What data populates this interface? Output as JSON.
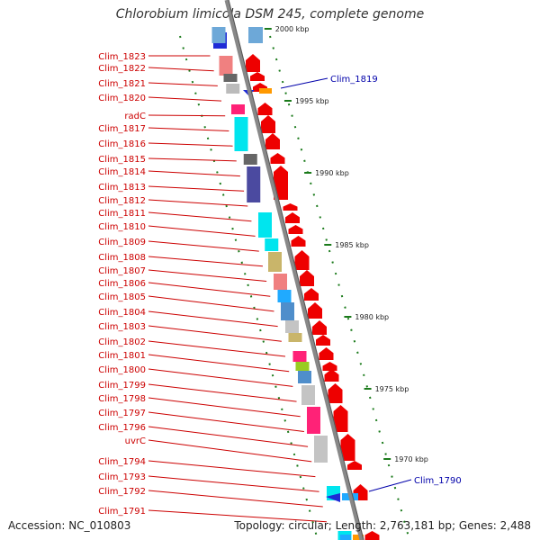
{
  "title": "Chlorobium limicola DSM 245, complete genome",
  "footer": {
    "accession": "Accession: NC_010803",
    "summary": "Topology: circular; Length: 2,763,181 bp; Genes: 2,488"
  },
  "colors": {
    "left_label": "#cc0000",
    "right_label": "#0000aa",
    "tick": "#1a7a1a",
    "backbone": "#888888"
  },
  "left_labels": [
    "Clim_1823",
    "Clim_1822",
    "Clim_1821",
    "Clim_1820",
    "radC",
    "Clim_1817",
    "Clim_1816",
    "Clim_1815",
    "Clim_1814",
    "Clim_1813",
    "Clim_1812",
    "Clim_1811",
    "Clim_1810",
    "Clim_1809",
    "Clim_1808",
    "Clim_1807",
    "Clim_1806",
    "Clim_1805",
    "Clim_1804",
    "Clim_1803",
    "Clim_1802",
    "Clim_1801",
    "Clim_1800",
    "Clim_1799",
    "Clim_1798",
    "Clim_1797",
    "Clim_1796",
    "uvrC",
    "Clim_1794",
    "Clim_1793",
    "Clim_1792",
    "Clim_1791"
  ],
  "right_labels": [
    "Clim_1819",
    "Clim_1790"
  ],
  "kbp_labels": [
    "2000 kbp",
    "1995 kbp",
    "1990 kbp",
    "1985 kbp",
    "1980 kbp",
    "1975 kbp",
    "1970 kbp"
  ]
}
